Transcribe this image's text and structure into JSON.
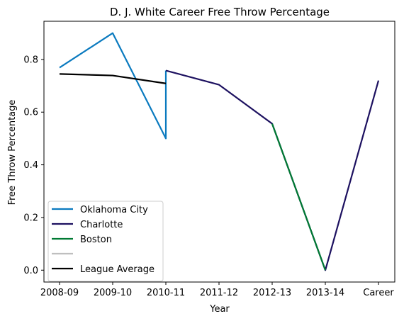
{
  "chart_data": {
    "type": "line",
    "title": "D. J. White Career Free Throw Percentage",
    "xlabel": "Year",
    "ylabel": "Free Throw Percentage",
    "categories": [
      "2008-09",
      "2009-10",
      "2010-11",
      "2011-12",
      "2012-13",
      "2013-14",
      "Career"
    ],
    "yticks": [
      0.0,
      0.2,
      0.4,
      0.6,
      0.8
    ],
    "ylim": [
      -0.045,
      0.945
    ],
    "grid": false,
    "legend_position": "lower-left",
    "series": [
      {
        "name": "Oklahoma City",
        "color": "#0a7abf",
        "points": [
          [
            "2008-09",
            0.769
          ],
          [
            "2009-10",
            0.9
          ],
          [
            "2010-11",
            0.5
          ],
          [
            "2010-11",
            0.758
          ]
        ]
      },
      {
        "name": "Charlotte",
        "color": "#1d1160",
        "points": [
          [
            "2010-11",
            0.758
          ],
          [
            "2011-12",
            0.704
          ],
          [
            "2012-13",
            0.556
          ],
          [
            "2013-14",
            0.0
          ],
          [
            "Career",
            0.72
          ]
        ]
      },
      {
        "name": "Boston",
        "color": "#007a33",
        "points": [
          [
            "2012-13",
            0.556
          ],
          [
            "2013-14",
            0.0
          ]
        ]
      },
      {
        "name": "",
        "color": "#bfbfbf",
        "points": []
      },
      {
        "name": "League Average",
        "color": "#000000",
        "points": [
          [
            "2008-09",
            0.745
          ],
          [
            "2009-10",
            0.739
          ],
          [
            "2010-11",
            0.709
          ]
        ]
      }
    ]
  }
}
